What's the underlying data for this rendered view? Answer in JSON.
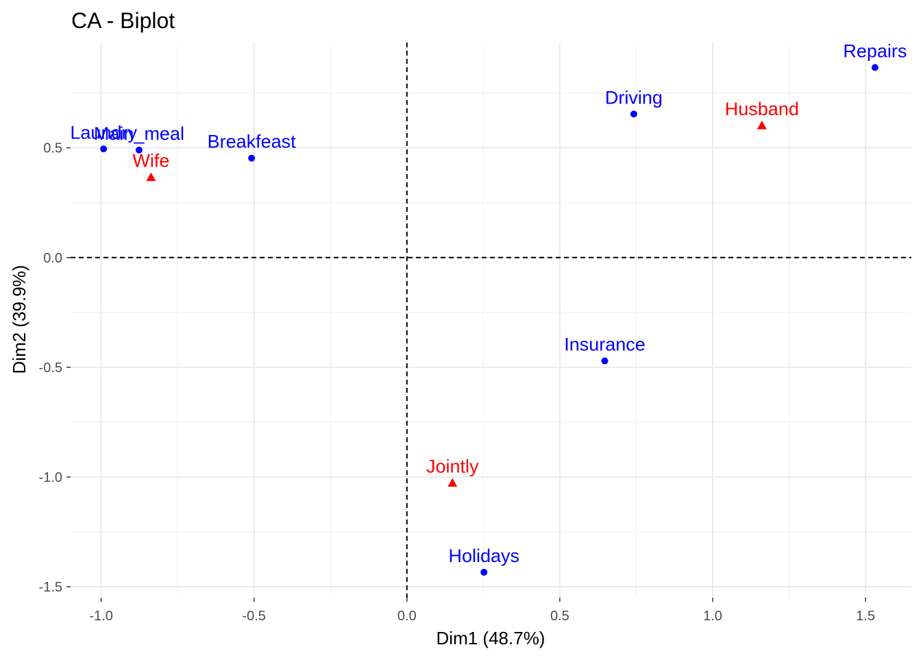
{
  "chart_data": {
    "type": "scatter",
    "title": "CA - Biplot",
    "xlabel": "Dim1 (48.7%)",
    "ylabel": "Dim2 (39.9%)",
    "xlim": [
      -1.1,
      1.65
    ],
    "ylim": [
      -1.55,
      0.98
    ],
    "x_ticks": [
      -1.0,
      -0.5,
      0.0,
      0.5,
      1.0,
      1.5
    ],
    "x_tick_labels": [
      "-1.0",
      "-0.5",
      "0.0",
      "0.5",
      "1.0",
      "1.5"
    ],
    "y_ticks": [
      -1.5,
      -1.0,
      -0.5,
      0.0,
      0.5
    ],
    "y_tick_labels": [
      "-1.5",
      "-1.0",
      "-0.5",
      "0.0",
      "0.5"
    ],
    "grid": true,
    "reference_lines": {
      "x": 0,
      "y": 0,
      "style": "dashed"
    },
    "series": [
      {
        "type": "column",
        "color": "#0000ff",
        "marker": "circle",
        "points": [
          {
            "label": "Laundry",
            "x": -0.992,
            "y": 0.495
          },
          {
            "label": "Main_meal",
            "x": -0.876,
            "y": 0.49
          },
          {
            "label": "Breakfeast",
            "x": -0.508,
            "y": 0.453
          },
          {
            "label": "Driving",
            "x": 0.742,
            "y": 0.654
          },
          {
            "label": "Repairs",
            "x": 1.531,
            "y": 0.866
          },
          {
            "label": "Insurance",
            "x": 0.647,
            "y": -0.471
          },
          {
            "label": "Holidays",
            "x": 0.252,
            "y": -1.434
          }
        ]
      },
      {
        "type": "row",
        "color": "#ff0000",
        "marker": "triangle",
        "points": [
          {
            "label": "Wife",
            "x": -0.837,
            "y": 0.366
          },
          {
            "label": "Husband",
            "x": 1.161,
            "y": 0.602
          },
          {
            "label": "Jointly",
            "x": 0.149,
            "y": -1.027
          }
        ]
      }
    ]
  }
}
